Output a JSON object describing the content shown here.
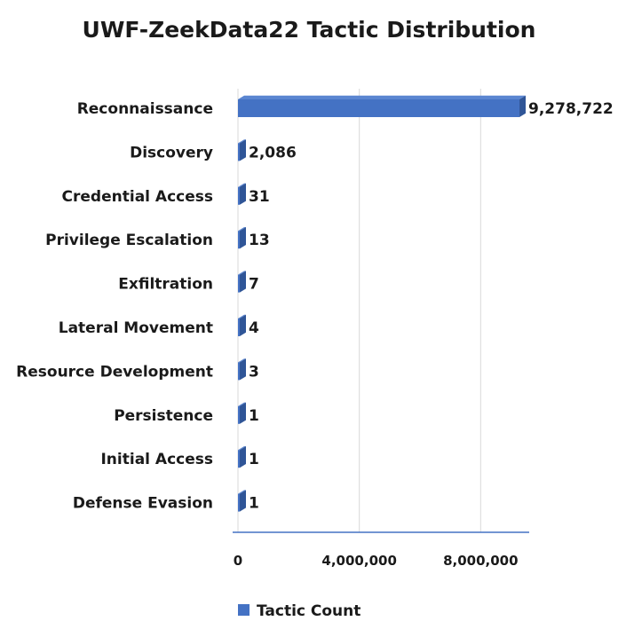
{
  "colors": {
    "bar_front": "#4472C4",
    "bar_side": "#2F5597",
    "bar_top": "#5B86D1",
    "gridline": "#d9d9d9",
    "axis_line": "#4472C4",
    "text": "#1a1a1a"
  },
  "chart_data": {
    "type": "bar",
    "orientation": "horizontal",
    "style": "3d-clustered",
    "title": "UWF-ZeekData22 Tactic Distribution",
    "xlabel": "",
    "ylabel": "",
    "categories": [
      "Reconnaissance",
      "Discovery",
      "Credential Access",
      "Privilege Escalation",
      "Exfiltration",
      "Lateral Movement",
      "Resource Development",
      "Persistence",
      "Initial Access",
      "Defense Evasion"
    ],
    "series": [
      {
        "name": "Tactic Count",
        "values": [
          9278722,
          2086,
          31,
          13,
          7,
          4,
          3,
          1,
          1,
          1
        ],
        "data_labels": [
          "9,278,722",
          "2,086",
          "31",
          "13",
          "7",
          "4",
          "3",
          "1",
          "1",
          "1"
        ]
      }
    ],
    "xlim": [
      0,
      9600000
    ],
    "x_ticks": [
      0,
      4000000,
      8000000
    ],
    "x_tick_labels": [
      "0",
      "4,000,000",
      "8,000,000"
    ],
    "grid": true,
    "legend_position": "bottom"
  }
}
